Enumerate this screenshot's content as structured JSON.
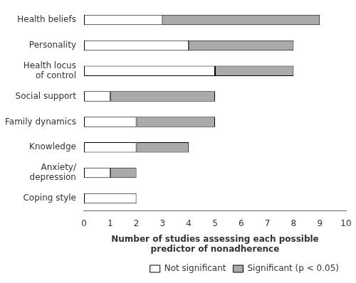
{
  "chart_data": {
    "type": "bar",
    "orientation": "horizontal",
    "stacked": true,
    "categories": [
      "Health beliefs",
      "Personality",
      "Health locus\nof control",
      "Social support",
      "Family dynamics",
      "Knowledge",
      "Anxiety/\ndepression",
      "Coping style"
    ],
    "series": [
      {
        "name": "Not significant",
        "color": "#ffffff",
        "values": [
          3,
          4,
          5,
          1,
          2,
          2,
          1,
          2
        ]
      },
      {
        "name": "Significant (p < 0.05)",
        "color": "#aaaaaa",
        "values": [
          6,
          4,
          3,
          4,
          3,
          2,
          1,
          0
        ]
      }
    ],
    "xlabel": "Number of studies assessing each possible\npredictor of nonadherence",
    "xlim": [
      0,
      10
    ],
    "xticks": [
      0,
      1,
      2,
      3,
      4,
      5,
      6,
      7,
      8,
      9,
      10
    ],
    "grid": false,
    "legend": "lower right"
  }
}
